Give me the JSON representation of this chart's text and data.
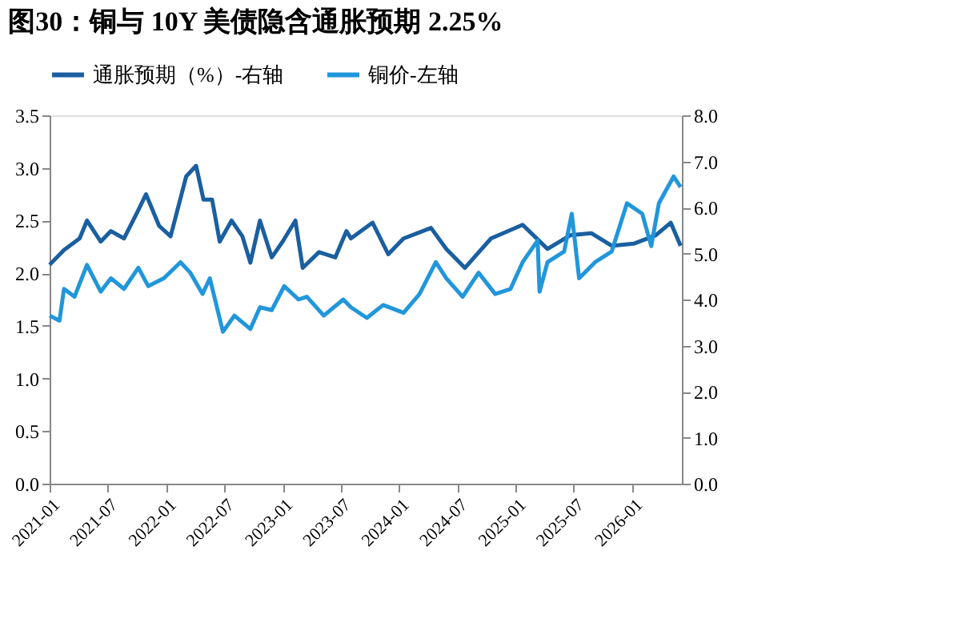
{
  "chart_data": {
    "type": "line",
    "title": "图30：铜与 10Y 美债隐含通胀预期 2.25%",
    "xlim": [
      "2021-01-01",
      "2026-06-05"
    ],
    "xticks": [
      "2021-01",
      "2021-07",
      "2022-01",
      "2022-07",
      "2023-01",
      "2023-07",
      "2024-01",
      "2024-07",
      "2025-01",
      "2025-07",
      "2026-01"
    ],
    "ylim": [
      0,
      3.5
    ],
    "yticks": [
      {
        "value": 0,
        "label": "0.0"
      },
      {
        "value": 0.5,
        "label": "0.5"
      },
      {
        "value": 1,
        "label": "1.0"
      },
      {
        "value": 1.5,
        "label": "1.5"
      },
      {
        "value": 2,
        "label": "2.0"
      },
      {
        "value": 2.5,
        "label": "2.5"
      },
      {
        "value": 3,
        "label": "3.0"
      },
      {
        "value": 3.5,
        "label": "3.5"
      }
    ],
    "y2lim": [
      0,
      8
    ],
    "y2ticks": [
      {
        "value": 0,
        "label": "0.0"
      },
      {
        "value": 1,
        "label": "1.0"
      },
      {
        "value": 2,
        "label": "2.0"
      },
      {
        "value": 3,
        "label": "3.0"
      },
      {
        "value": 4,
        "label": "4.0"
      },
      {
        "value": 5,
        "label": "5.0"
      },
      {
        "value": 6,
        "label": "6.0"
      },
      {
        "value": 7,
        "label": "7.0"
      },
      {
        "value": 8,
        "label": "8.0"
      }
    ],
    "grid": false,
    "legend": "top",
    "marker": "none",
    "line_style": "solid",
    "series": [
      {
        "name": "通胀预期（%）-右轴",
        "color": "#1a5fa0",
        "x": [
          "2021-01-01",
          "2021-02-15",
          "2021-04-05",
          "2021-04-28",
          "2021-06-10",
          "2021-07-12",
          "2021-08-22",
          "2021-10-06",
          "2021-10-30",
          "2021-12-10",
          "2022-01-15",
          "2022-03-05",
          "2022-04-05",
          "2022-04-28",
          "2022-05-25",
          "2022-06-18",
          "2022-07-25",
          "2022-08-28",
          "2022-09-22",
          "2022-10-22",
          "2022-11-28",
          "2023-01-01",
          "2023-02-10",
          "2023-03-05",
          "2023-04-25",
          "2023-06-15",
          "2023-07-20",
          "2023-08-03",
          "2023-10-10",
          "2023-11-28",
          "2024-01-15",
          "2024-04-10",
          "2024-05-28",
          "2024-07-25",
          "2024-10-15",
          "2025-01-22",
          "2025-04-10",
          "2025-06-20",
          "2025-08-25",
          "2025-10-28",
          "2026-01-05",
          "2026-03-15",
          "2026-05-01",
          "2026-06-01"
        ],
        "values": [
          2.08,
          2.22,
          2.33,
          2.5,
          2.3,
          2.4,
          2.33,
          2.6,
          2.75,
          2.45,
          2.35,
          2.92,
          3.02,
          2.7,
          2.7,
          2.3,
          2.5,
          2.35,
          2.1,
          2.5,
          2.15,
          2.3,
          2.5,
          2.05,
          2.2,
          2.15,
          2.4,
          2.33,
          2.48,
          2.18,
          2.33,
          2.43,
          2.23,
          2.05,
          2.33,
          2.46,
          2.23,
          2.36,
          2.38,
          2.26,
          2.28,
          2.36,
          2.48,
          2.26
        ]
      },
      {
        "name": "铜价-左轴",
        "color": "#2196db",
        "axis": "y2",
        "x": [
          "2021-01-01",
          "2021-02-01",
          "2021-02-15",
          "2021-03-20",
          "2021-04-28",
          "2021-06-10",
          "2021-07-12",
          "2021-08-22",
          "2021-10-06",
          "2021-11-06",
          "2021-12-25",
          "2022-02-15",
          "2022-03-18",
          "2022-04-25",
          "2022-05-18",
          "2022-06-28",
          "2022-08-03",
          "2022-09-22",
          "2022-10-22",
          "2022-11-28",
          "2023-01-06",
          "2023-02-20",
          "2023-03-18",
          "2023-05-10",
          "2023-07-10",
          "2023-08-03",
          "2023-09-22",
          "2023-11-12",
          "2024-01-15",
          "2024-03-05",
          "2024-04-25",
          "2024-05-28",
          "2024-07-18",
          "2024-09-06",
          "2024-10-28",
          "2024-12-15",
          "2025-01-22",
          "2025-03-10",
          "2025-03-16",
          "2025-04-10",
          "2025-06-01",
          "2025-06-25",
          "2025-07-18",
          "2025-09-06",
          "2025-10-28",
          "2025-12-15",
          "2026-02-01",
          "2026-03-01",
          "2026-03-25",
          "2026-05-10",
          "2026-06-01"
        ],
        "values": [
          3.65,
          3.54,
          4.23,
          4.06,
          4.75,
          4.17,
          4.46,
          4.23,
          4.69,
          4.29,
          4.46,
          4.81,
          4.58,
          4.12,
          4.46,
          3.3,
          3.65,
          3.36,
          3.83,
          3.77,
          4.29,
          4.0,
          4.06,
          3.65,
          4.0,
          3.83,
          3.6,
          3.88,
          3.71,
          4.12,
          4.81,
          4.46,
          4.06,
          4.58,
          4.12,
          4.23,
          4.81,
          5.28,
          4.17,
          4.81,
          5.04,
          5.86,
          4.46,
          4.81,
          5.04,
          6.09,
          5.86,
          5.16,
          6.09,
          6.67,
          6.44
        ]
      }
    ]
  }
}
